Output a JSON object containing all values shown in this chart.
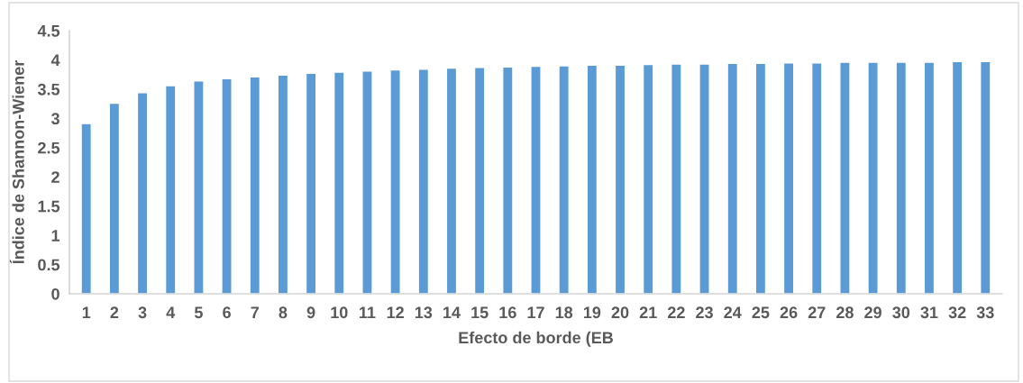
{
  "chart_data": {
    "type": "bar",
    "xlabel": "Efecto de borde (EB",
    "ylabel": "Índice de Shannon-Wiener",
    "categories": [
      "1",
      "2",
      "3",
      "4",
      "5",
      "6",
      "7",
      "8",
      "9",
      "10",
      "11",
      "12",
      "13",
      "14",
      "15",
      "16",
      "17",
      "18",
      "19",
      "20",
      "21",
      "22",
      "23",
      "24",
      "25",
      "26",
      "27",
      "28",
      "29",
      "30",
      "31",
      "32",
      "33"
    ],
    "values": [
      2.91,
      3.26,
      3.44,
      3.56,
      3.64,
      3.68,
      3.71,
      3.74,
      3.77,
      3.79,
      3.81,
      3.83,
      3.84,
      3.86,
      3.87,
      3.88,
      3.89,
      3.9,
      3.91,
      3.91,
      3.92,
      3.93,
      3.93,
      3.94,
      3.94,
      3.95,
      3.95,
      3.96,
      3.96,
      3.96,
      3.96,
      3.97,
      3.97
    ],
    "color": "#5b9bd5",
    "ylim": [
      0,
      4.5
    ],
    "yticks": [
      0,
      0.5,
      1,
      1.5,
      2,
      2.5,
      3,
      3.5,
      4,
      4.5
    ],
    "grid": false,
    "legend": false
  }
}
